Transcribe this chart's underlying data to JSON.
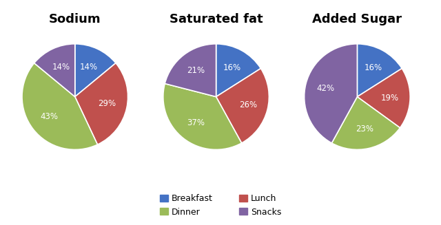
{
  "charts": [
    {
      "title": "Sodium",
      "values": [
        14,
        29,
        43,
        14
      ],
      "labels": [
        "14%",
        "29%",
        "43%",
        "14%"
      ],
      "startangle": 90
    },
    {
      "title": "Saturated fat",
      "values": [
        16,
        26,
        37,
        21
      ],
      "labels": [
        "16%",
        "26%",
        "37%",
        "21%"
      ],
      "startangle": 90
    },
    {
      "title": "Added Sugar",
      "values": [
        16,
        19,
        23,
        42
      ],
      "labels": [
        "16%",
        "19%",
        "23%",
        "42%"
      ],
      "startangle": 90
    }
  ],
  "colors": [
    "#4472c4",
    "#c0504d",
    "#9bbb59",
    "#8064a2"
  ],
  "legend_labels": [
    "Breakfast",
    "Lunch",
    "Dinner",
    "Snacks"
  ],
  "legend_colors": [
    "#4472c4",
    "#c0504d",
    "#9bbb59",
    "#8064a2"
  ],
  "background_color": "#ffffff",
  "text_color": "#ffffff",
  "label_fontsize": 8.5,
  "title_fontsize": 13,
  "title_fontweight": "bold"
}
